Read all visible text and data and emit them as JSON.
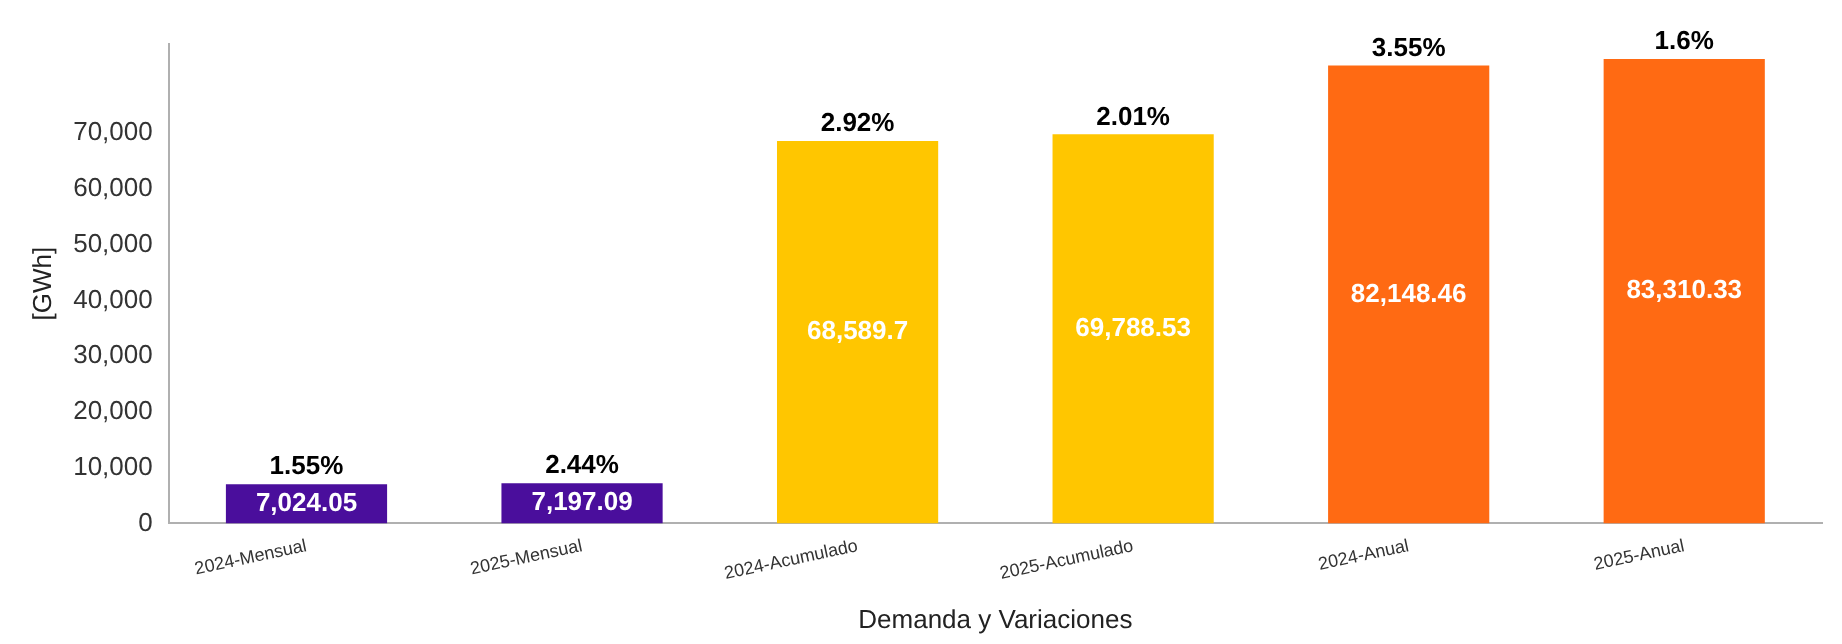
{
  "chart_data": {
    "type": "bar",
    "xlabel": "Demanda y Variaciones",
    "ylabel": "[GWh]",
    "categories": [
      "2024-Mensual",
      "2025-Mensual",
      "2024-Acumulado",
      "2025-Acumulado",
      "2024-Anual",
      "2025-Anual"
    ],
    "values": [
      7024.05,
      7197.09,
      68589.7,
      69788.53,
      82148.46,
      83310.33
    ],
    "colors": [
      "#4a0e9c",
      "#4a0e9c",
      "#ffc600",
      "#ffc600",
      "#ff6a13",
      "#ff6a13"
    ],
    "value_labels": [
      "7,024.05",
      "7,197.09",
      "68,589.7",
      "69,788.53",
      "82,148.46",
      "83,310.33"
    ],
    "ylim": [
      0,
      86000
    ],
    "yticks": [
      0,
      {
        "value": 10000,
        "label": "10,000"
      },
      {
        "value": 20000,
        "label": "20,000"
      },
      {
        "value": 30000,
        "label": "30,000"
      },
      {
        "value": 40000,
        "label": "40,000"
      },
      {
        "value": 50000,
        "label": "50,000"
      },
      {
        "value": 60000,
        "label": "60,000"
      },
      {
        "value": 70000,
        "label": "70,000"
      }
    ],
    "grid": false,
    "legend": false,
    "annotations": [
      {
        "text": "1.55%",
        "x": "2024-Mensual",
        "y": 7024.05
      },
      {
        "text": "2.44%",
        "x": "2025-Mensual",
        "y": 7197.09
      },
      {
        "text": "2.92%",
        "x": "2024-Acumulado",
        "y": 68589.7
      },
      {
        "text": "2.01%",
        "x": "2025-Acumulado",
        "y": 69788.53
      },
      {
        "text": "3.55%",
        "x": "2024-Anual",
        "y": 82148.46
      },
      {
        "text": "1.6%",
        "x": "2025-Anual",
        "y": 83310.33
      }
    ]
  }
}
